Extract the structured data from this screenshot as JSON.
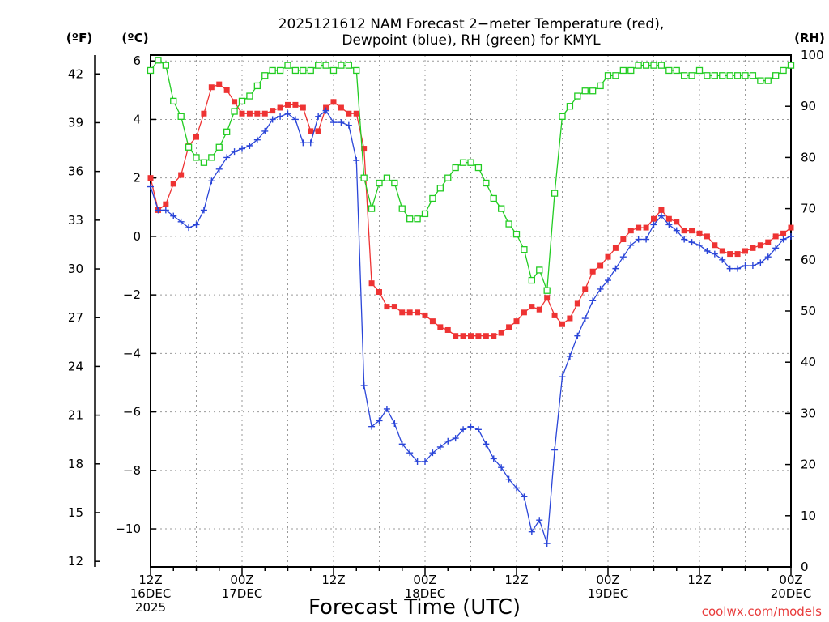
{
  "title_line1": "2025121612 NAM Forecast 2−meter Temperature (red),",
  "title_line2": "Dewpoint (blue), RH (green) for KMYL",
  "unit_f": "(ºF)",
  "unit_c": "(ºC)",
  "unit_rh": "(RH)",
  "xlabel": "Forecast Time (UTC)",
  "credit": "coolwx.com/models",
  "chart_data": {
    "type": "line",
    "x_hours_range": [
      0,
      84
    ],
    "x_hours": [
      0,
      1,
      2,
      3,
      4,
      5,
      6,
      7,
      8,
      9,
      10,
      11,
      12,
      13,
      14,
      15,
      16,
      17,
      18,
      19,
      20,
      21,
      22,
      23,
      24,
      25,
      26,
      27,
      28,
      29,
      30,
      31,
      32,
      33,
      34,
      35,
      36,
      37,
      38,
      39,
      40,
      41,
      42,
      43,
      44,
      45,
      46,
      47,
      48,
      49,
      50,
      51,
      52,
      53,
      54,
      55,
      56,
      57,
      58,
      59,
      60,
      61,
      62,
      63,
      64,
      65,
      66,
      67,
      68,
      69,
      70,
      71,
      72,
      73,
      74,
      75,
      76,
      77,
      78,
      79,
      80,
      81,
      82,
      83,
      84
    ],
    "x_ticks": [
      {
        "hour": 0,
        "line1": "12Z",
        "line2": "16DEC",
        "line3": "2025"
      },
      {
        "hour": 12,
        "line1": "00Z",
        "line2": "17DEC",
        "line3": ""
      },
      {
        "hour": 24,
        "line1": "12Z",
        "line2": "",
        "line3": ""
      },
      {
        "hour": 36,
        "line1": "00Z",
        "line2": "18DEC",
        "line3": ""
      },
      {
        "hour": 48,
        "line1": "12Z",
        "line2": "",
        "line3": ""
      },
      {
        "hour": 60,
        "line1": "00Z",
        "line2": "19DEC",
        "line3": ""
      },
      {
        "hour": 72,
        "line1": "12Z",
        "line2": "",
        "line3": ""
      },
      {
        "hour": 84,
        "line1": "00Z",
        "line2": "20DEC",
        "line3": ""
      }
    ],
    "y_celsius_range": [
      -11.3,
      6.2
    ],
    "y_celsius_ticks": [
      "6",
      "4",
      "2",
      "0",
      "−2",
      "−4",
      "−6",
      "−8",
      "−10"
    ],
    "y_celsius_tick_values": [
      6,
      4,
      2,
      0,
      -2,
      -4,
      -6,
      -8,
      -10
    ],
    "y_fahrenheit_ticks": [
      "42",
      "39",
      "36",
      "33",
      "30",
      "27",
      "24",
      "21",
      "18",
      "15",
      "12"
    ],
    "y_fahrenheit_tick_values": [
      42,
      39,
      36,
      33,
      30,
      27,
      24,
      21,
      18,
      15,
      12
    ],
    "y_rh_range": [
      0,
      100
    ],
    "y_rh_ticks": [
      "100",
      "90",
      "80",
      "70",
      "60",
      "50",
      "40",
      "30",
      "20",
      "10",
      "0"
    ],
    "y_rh_tick_values": [
      100,
      90,
      80,
      70,
      60,
      50,
      40,
      30,
      20,
      10,
      0
    ],
    "grid": true,
    "series": [
      {
        "name": "Temperature",
        "unit": "C",
        "color": "#ee3333",
        "marker": "filled-square",
        "values": [
          2.0,
          0.9,
          1.1,
          1.8,
          2.1,
          3.1,
          3.4,
          4.2,
          5.1,
          5.2,
          5.0,
          4.6,
          4.2,
          4.2,
          4.2,
          4.2,
          4.3,
          4.4,
          4.5,
          4.5,
          4.4,
          3.6,
          3.6,
          4.4,
          4.6,
          4.4,
          4.2,
          4.2,
          3.0,
          -1.6,
          -1.9,
          -2.4,
          -2.4,
          -2.6,
          -2.6,
          -2.6,
          -2.7,
          -2.9,
          -3.1,
          -3.2,
          -3.4,
          -3.4,
          -3.4,
          -3.4,
          -3.4,
          -3.4,
          -3.3,
          -3.1,
          -2.9,
          -2.6,
          -2.4,
          -2.5,
          -2.1,
          -2.7,
          -3.0,
          -2.8,
          -2.3,
          -1.8,
          -1.2,
          -1.0,
          -0.7,
          -0.4,
          -0.1,
          0.2,
          0.3,
          0.3,
          0.6,
          0.9,
          0.6,
          0.5,
          0.2,
          0.2,
          0.1,
          0.0,
          -0.3,
          -0.5,
          -0.6,
          -0.6,
          -0.5,
          -0.4,
          -0.3,
          -0.2,
          0.0,
          0.1,
          0.3
        ]
      },
      {
        "name": "Dewpoint",
        "unit": "C",
        "color": "#2a45d8",
        "marker": "plus",
        "values": [
          1.7,
          0.9,
          0.9,
          0.7,
          0.5,
          0.3,
          0.4,
          0.9,
          1.9,
          2.3,
          2.7,
          2.9,
          3.0,
          3.1,
          3.3,
          3.6,
          4.0,
          4.1,
          4.2,
          4.0,
          3.2,
          3.2,
          4.1,
          4.3,
          3.9,
          3.9,
          3.8,
          2.6,
          -5.1,
          -6.5,
          -6.3,
          -5.9,
          -6.4,
          -7.1,
          -7.4,
          -7.7,
          -7.7,
          -7.4,
          -7.2,
          -7.0,
          -6.9,
          -6.6,
          -6.5,
          -6.6,
          -7.1,
          -7.6,
          -7.9,
          -8.3,
          -8.6,
          -8.9,
          -10.1,
          -9.7,
          -10.5,
          -7.3,
          -4.8,
          -4.1,
          -3.4,
          -2.8,
          -2.2,
          -1.8,
          -1.5,
          -1.1,
          -0.7,
          -0.3,
          -0.1,
          -0.1,
          0.4,
          0.7,
          0.4,
          0.2,
          -0.1,
          -0.2,
          -0.3,
          -0.5,
          -0.6,
          -0.8,
          -1.1,
          -1.1,
          -1.0,
          -1.0,
          -0.9,
          -0.7,
          -0.4,
          -0.1,
          0.0
        ]
      },
      {
        "name": "Relative Humidity",
        "unit": "%",
        "color": "#22cc22",
        "marker": "open-square",
        "values": [
          97,
          99,
          98,
          91,
          88,
          82,
          80,
          79,
          80,
          82,
          85,
          89,
          91,
          92,
          94,
          96,
          97,
          97,
          98,
          97,
          97,
          97,
          98,
          98,
          97,
          98,
          98,
          97,
          76,
          70,
          75,
          76,
          75,
          70,
          68,
          68,
          69,
          72,
          74,
          76,
          78,
          79,
          79,
          78,
          75,
          72,
          70,
          67,
          65,
          62,
          56,
          58,
          54,
          73,
          88,
          90,
          92,
          93,
          93,
          94,
          96,
          96,
          97,
          97,
          98,
          98,
          98,
          98,
          97,
          97,
          96,
          96,
          97,
          96,
          96,
          96,
          96,
          96,
          96,
          96,
          95,
          95,
          96,
          97,
          98
        ]
      }
    ]
  }
}
